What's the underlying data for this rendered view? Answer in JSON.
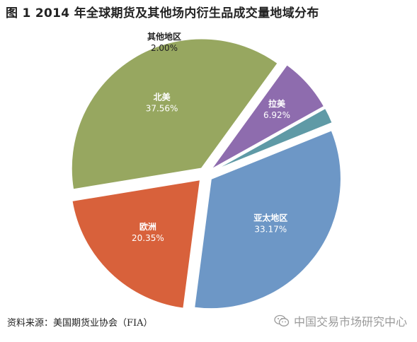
{
  "title": "图 1 2014 年全球期货及其他场内衍生品成交量地域分布",
  "source": "资料来源：美国期货业协会（FIA）",
  "watermark": "中国交易市场研究中心",
  "chart_data": {
    "type": "pie",
    "title": "图 1 2014 年全球期货及其他场内衍生品成交量地域分布",
    "slices": [
      {
        "name": "亚太地区",
        "value": 33.17,
        "label": "33.17%",
        "color": "#6d97c6"
      },
      {
        "name": "欧洲",
        "value": 20.35,
        "label": "20.35%",
        "color": "#d8613b"
      },
      {
        "name": "北美",
        "value": 37.56,
        "label": "37.56%",
        "color": "#97a760"
      },
      {
        "name": "拉美",
        "value": 6.92,
        "label": "6.92%",
        "color": "#8e6cae"
      },
      {
        "name": "其他地区",
        "value": 2.0,
        "label": "2.00%",
        "color": "#5f9aa6"
      }
    ]
  }
}
